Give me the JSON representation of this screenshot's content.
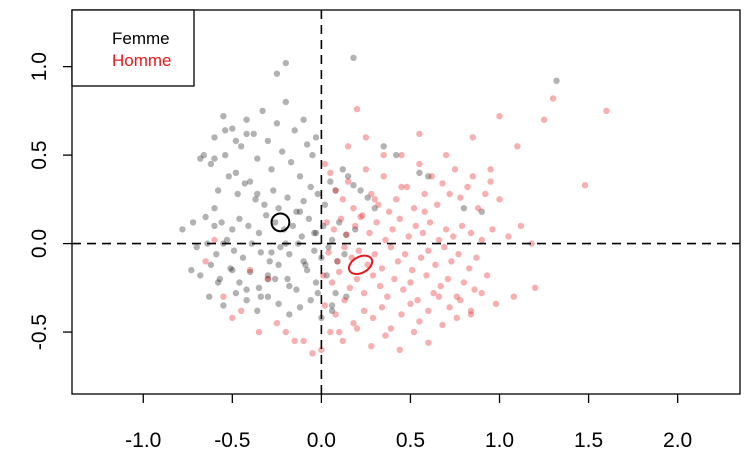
{
  "chart_data": {
    "type": "scatter",
    "title": "",
    "xlabel": "",
    "ylabel": "",
    "xlim": [
      -1.4,
      2.35
    ],
    "ylim": [
      -0.85,
      1.32
    ],
    "xticks": [
      "-1.0",
      "-0.5",
      "0.0",
      "0.5",
      "1.0",
      "1.5",
      "2.0"
    ],
    "yticks": [
      "-0.5",
      "0.0",
      "0.5",
      "1.0"
    ],
    "reference_lines": {
      "x": 0,
      "y": 0,
      "style": "dashed"
    },
    "legend": {
      "position": "top-left"
    },
    "series": [
      {
        "name": "Femme",
        "color": "#000000",
        "marker_alpha": 0.3,
        "mean": {
          "x": -0.23,
          "y": 0.12,
          "rx": 0.05,
          "ry": 0.05
        },
        "x": [
          -0.62,
          -0.6,
          -0.55,
          -0.54,
          -0.5,
          -0.48,
          -0.45,
          -0.42,
          -0.4,
          -0.38,
          -0.36,
          -0.33,
          -0.3,
          -0.28,
          -0.25,
          -0.22,
          -0.2,
          -0.17,
          -0.15,
          -0.12,
          -0.1,
          -0.08,
          -0.05,
          -0.03,
          -0.58,
          -0.52,
          -0.47,
          -0.43,
          -0.37,
          -0.32,
          -0.27,
          -0.24,
          -0.19,
          -0.14,
          -0.1,
          -0.06,
          -0.02,
          0.02,
          0.05,
          0.08,
          0.12,
          0.15,
          0.18,
          0.22,
          0.26,
          0.3,
          -0.65,
          -0.6,
          -0.56,
          -0.5,
          -0.46,
          -0.41,
          -0.35,
          -0.31,
          -0.26,
          -0.21,
          -0.16,
          -0.11,
          -0.07,
          -0.03,
          0.01,
          0.06,
          0.1,
          0.14,
          0.19,
          -0.7,
          -0.64,
          -0.59,
          -0.53,
          -0.49,
          -0.44,
          -0.39,
          -0.34,
          -0.29,
          -0.23,
          -0.18,
          -0.13,
          -0.09,
          -0.04,
          0.0,
          0.04,
          0.09,
          0.13,
          -0.73,
          -0.68,
          -0.62,
          -0.57,
          -0.51,
          -0.46,
          -0.4,
          -0.35,
          -0.3,
          -0.24,
          -0.19,
          -0.14,
          -0.08,
          -0.03,
          0.03,
          0.08,
          -0.63,
          -0.55,
          -0.48,
          -0.42,
          -0.36,
          -0.3,
          -0.24,
          -0.18,
          -0.12,
          -0.06,
          0.0,
          0.06,
          -0.78,
          -0.72,
          -0.66,
          -0.6,
          -0.54,
          -0.48,
          -0.42,
          -0.36,
          -0.28,
          -0.2,
          -0.12,
          -0.04,
          -0.58,
          -0.5,
          -0.42,
          -0.34,
          -0.26,
          -0.18,
          -0.1,
          -0.02,
          0.06,
          0.14,
          0.35,
          0.42,
          0.55,
          0.6,
          0.8,
          0.9,
          1.32,
          0.18,
          -0.2,
          -0.25,
          -0.6,
          -0.55,
          -0.68,
          -0.3
        ],
        "y": [
          0.45,
          0.6,
          0.72,
          0.5,
          0.65,
          0.4,
          0.55,
          0.7,
          0.35,
          0.62,
          0.48,
          0.75,
          0.58,
          0.42,
          0.68,
          0.52,
          0.8,
          0.46,
          0.64,
          0.38,
          0.7,
          0.56,
          0.5,
          0.6,
          0.3,
          0.38,
          0.28,
          0.34,
          0.25,
          0.22,
          0.3,
          0.2,
          0.26,
          0.18,
          0.24,
          0.32,
          0.28,
          0.22,
          0.35,
          0.3,
          0.42,
          0.38,
          0.33,
          0.3,
          0.26,
          0.2,
          0.15,
          0.1,
          0.12,
          0.08,
          0.14,
          0.1,
          0.06,
          0.16,
          0.12,
          0.08,
          0.1,
          0.04,
          0.14,
          0.06,
          0.1,
          0.02,
          0.12,
          0.05,
          0.08,
          -0.02,
          0.0,
          -0.06,
          0.02,
          -0.04,
          -0.08,
          0.0,
          -0.05,
          -0.1,
          -0.02,
          -0.06,
          0.0,
          -0.12,
          -0.04,
          -0.08,
          -0.02,
          -0.1,
          -0.06,
          -0.15,
          -0.18,
          -0.12,
          -0.2,
          -0.14,
          -0.22,
          -0.16,
          -0.25,
          -0.18,
          -0.12,
          -0.2,
          -0.26,
          -0.15,
          -0.22,
          -0.18,
          -0.28,
          -0.3,
          -0.35,
          -0.28,
          -0.32,
          -0.38,
          -0.3,
          -0.34,
          -0.4,
          -0.36,
          -0.32,
          -0.42,
          -0.38,
          0.08,
          0.12,
          0.5,
          0.48,
          0.64,
          0.58,
          0.62,
          0.28,
          -0.05,
          0.0,
          0.18,
          0.06,
          -0.22,
          -0.15,
          -0.26,
          -0.3,
          -0.2,
          -0.24,
          -0.1,
          -0.28,
          -0.35,
          -0.3,
          0.55,
          0.5,
          0.4,
          0.38,
          0.2,
          0.18,
          0.92,
          1.05,
          1.02,
          0.96,
          0.2,
          0.0,
          0.48,
          -0.2
        ]
      },
      {
        "name": "Homme",
        "color": "#e8191c",
        "marker_alpha": 0.35,
        "mean": {
          "x": 0.22,
          "y": -0.12,
          "rx": 0.07,
          "ry": 0.045
        },
        "x": [
          0.02,
          0.05,
          0.08,
          0.12,
          0.15,
          0.18,
          0.22,
          0.25,
          0.28,
          0.32,
          0.35,
          0.38,
          0.42,
          0.45,
          0.48,
          0.52,
          0.55,
          0.58,
          0.62,
          0.65,
          0.68,
          0.72,
          0.75,
          0.78,
          0.82,
          0.85,
          0.88,
          0.92,
          0.95,
          1.0,
          0.03,
          0.07,
          0.11,
          0.14,
          0.19,
          0.23,
          0.27,
          0.31,
          0.36,
          0.4,
          0.44,
          0.49,
          0.53,
          0.57,
          0.61,
          0.66,
          0.7,
          0.74,
          0.79,
          0.84,
          0.9,
          0.96,
          1.05,
          1.12,
          1.18,
          0.04,
          0.09,
          0.13,
          0.17,
          0.21,
          0.26,
          0.3,
          0.34,
          0.39,
          0.43,
          0.47,
          0.51,
          0.56,
          0.6,
          0.64,
          0.69,
          0.73,
          0.77,
          0.83,
          0.87,
          0.01,
          0.06,
          0.1,
          0.16,
          0.2,
          0.24,
          0.29,
          0.33,
          0.37,
          0.41,
          0.46,
          0.5,
          0.54,
          0.59,
          0.63,
          0.67,
          0.71,
          0.76,
          0.8,
          0.86,
          0.93,
          0.02,
          0.08,
          0.13,
          0.18,
          0.24,
          0.29,
          0.34,
          0.39,
          0.45,
          0.5,
          0.55,
          0.6,
          0.66,
          0.72,
          0.78,
          0.84,
          0.9,
          0.98,
          1.08,
          1.2,
          0.05,
          0.12,
          0.2,
          0.28,
          0.36,
          0.44,
          0.52,
          0.6,
          0.68,
          0.76,
          0.84,
          0.95,
          1.1,
          1.25,
          1.48,
          1.6,
          1.3,
          1.0,
          0.85,
          0.7,
          0.55,
          0.3,
          0.2,
          -0.05,
          -0.15,
          -0.25,
          -0.35,
          -0.45,
          -0.5,
          -0.2,
          -0.1,
          0.0,
          0.1,
          -0.3,
          -0.4,
          -0.55,
          -0.65,
          -0.6,
          0.15,
          0.25,
          0.35,
          0.45,
          0.58
        ],
        "y": [
          0.45,
          0.4,
          0.3,
          0.25,
          0.35,
          0.2,
          0.15,
          0.42,
          0.28,
          0.22,
          0.38,
          0.18,
          0.25,
          0.5,
          0.32,
          0.2,
          0.45,
          0.28,
          0.38,
          0.22,
          0.34,
          0.28,
          0.42,
          0.26,
          0.32,
          0.38,
          0.2,
          0.28,
          0.35,
          0.25,
          0.12,
          0.08,
          0.14,
          0.05,
          0.1,
          0.16,
          0.06,
          0.12,
          0.02,
          0.08,
          0.14,
          0.04,
          0.1,
          0.06,
          0.12,
          0.02,
          0.08,
          0.04,
          0.1,
          0.06,
          0.02,
          0.08,
          0.04,
          0.1,
          0.0,
          -0.05,
          -0.1,
          -0.02,
          -0.08,
          -0.04,
          -0.12,
          -0.06,
          -0.14,
          -0.02,
          -0.1,
          -0.06,
          -0.15,
          -0.08,
          -0.04,
          -0.12,
          -0.02,
          -0.1,
          -0.06,
          -0.14,
          -0.08,
          -0.18,
          -0.22,
          -0.16,
          -0.25,
          -0.2,
          -0.28,
          -0.18,
          -0.24,
          -0.3,
          -0.2,
          -0.26,
          -0.22,
          -0.32,
          -0.18,
          -0.28,
          -0.24,
          -0.2,
          -0.3,
          -0.22,
          -0.26,
          -0.18,
          -0.35,
          -0.4,
          -0.32,
          -0.45,
          -0.38,
          -0.42,
          -0.36,
          -0.48,
          -0.4,
          -0.34,
          -0.44,
          -0.38,
          -0.3,
          -0.36,
          -0.32,
          -0.4,
          -0.28,
          -0.34,
          -0.3,
          -0.25,
          -0.5,
          -0.55,
          -0.48,
          -0.58,
          -0.52,
          -0.6,
          -0.5,
          -0.56,
          -0.46,
          -0.42,
          -0.38,
          0.42,
          0.55,
          0.7,
          0.33,
          0.75,
          0.82,
          0.72,
          0.6,
          0.5,
          0.62,
          0.25,
          0.76,
          -0.62,
          -0.55,
          -0.45,
          -0.5,
          -0.38,
          -0.42,
          -0.5,
          -0.55,
          -0.6,
          -0.5,
          -0.2,
          -0.15,
          -0.3,
          -0.1,
          0.02,
          0.55,
          0.6,
          0.5,
          0.32,
          0.18
        ]
      }
    ]
  }
}
